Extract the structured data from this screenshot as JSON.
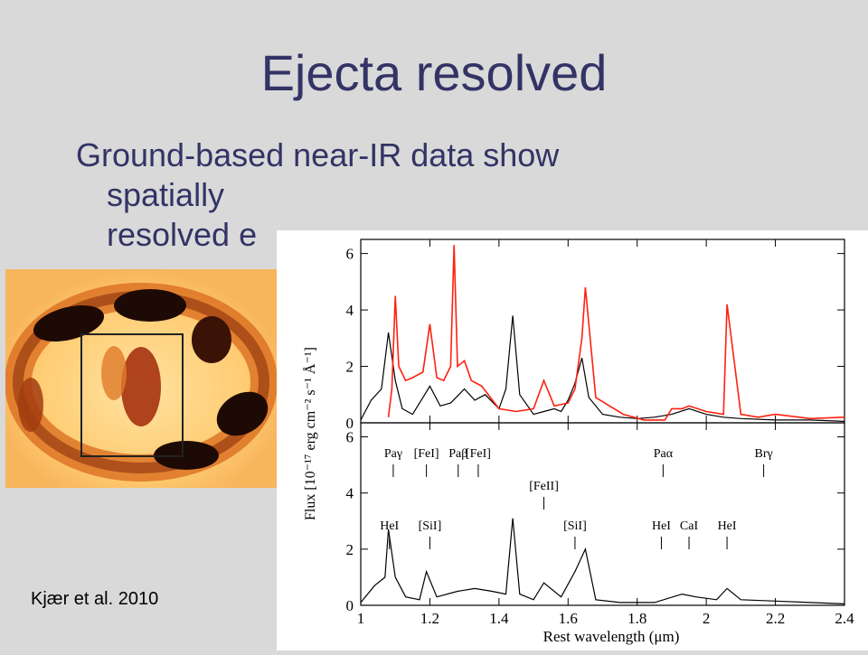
{
  "slide": {
    "title": "Ejecta resolved",
    "bullet_line1": "Ground-based near-IR data show",
    "bullet_line2": "spatially",
    "bullet_line3": "resolved e",
    "citation": "Kjær et al. 2010"
  },
  "colors": {
    "title": "#333366",
    "background": "#d9d9d9",
    "observed_spectrum": "#ff2010",
    "model_spectrum": "#000000",
    "ring_dark": "#1a0804",
    "ring_light": "#ffd890"
  },
  "chart_data": {
    "type": "line",
    "xlabel": "Rest wavelength (μm)",
    "ylabel": "Flux [10⁻¹⁷ erg cm⁻² s⁻¹ Å⁻¹]",
    "xlim": [
      1.0,
      2.4
    ],
    "x_ticks": [
      "1",
      "1.2",
      "1.4",
      "1.6",
      "1.8",
      "2",
      "2.2",
      "2.4"
    ],
    "panels": [
      {
        "name": "top",
        "ylim": [
          0,
          6.5
        ],
        "y_ticks": [
          "0",
          "2",
          "4",
          "6"
        ],
        "series": [
          {
            "x": [
              1.0,
              1.03,
              1.06,
              1.08,
              1.1,
              1.12,
              1.15,
              1.18,
              1.2,
              1.23,
              1.26,
              1.3,
              1.33,
              1.36,
              1.4,
              1.42,
              1.44,
              1.46,
              1.5,
              1.53,
              1.56,
              1.58,
              1.6,
              1.62,
              1.64,
              1.66,
              1.7,
              1.75,
              1.8,
              1.85,
              1.9,
              1.95,
              2.0,
              2.05,
              2.1,
              2.2,
              2.3,
              2.4
            ],
            "y": [
              0.1,
              0.8,
              1.2,
              3.2,
              1.5,
              0.5,
              0.3,
              0.9,
              1.3,
              0.6,
              0.7,
              1.2,
              0.8,
              1.0,
              0.5,
              1.2,
              3.8,
              1.0,
              0.3,
              0.4,
              0.5,
              0.4,
              0.8,
              1.4,
              2.3,
              0.9,
              0.3,
              0.2,
              0.15,
              0.2,
              0.3,
              0.5,
              0.3,
              0.2,
              0.15,
              0.1,
              0.1,
              0.05
            ]
          },
          {
            "x": [
              1.08,
              1.09,
              1.1,
              1.11,
              1.13,
              1.15,
              1.18,
              1.2,
              1.22,
              1.24,
              1.26,
              1.27,
              1.28,
              1.3,
              1.32,
              1.35,
              1.4,
              1.45,
              1.5,
              1.53,
              1.56,
              1.6,
              1.62,
              1.64,
              1.65,
              1.68,
              1.72,
              1.76,
              1.82,
              1.88,
              1.9,
              1.93,
              1.95,
              2.0,
              2.05,
              2.06,
              2.1,
              2.15,
              2.2,
              2.3,
              2.4
            ],
            "y": [
              0.2,
              1.2,
              4.5,
              2.0,
              1.5,
              1.6,
              1.8,
              3.5,
              1.6,
              1.5,
              2.0,
              6.3,
              2.0,
              2.2,
              1.5,
              1.3,
              0.5,
              0.4,
              0.5,
              1.5,
              0.6,
              0.7,
              1.2,
              3.0,
              4.8,
              0.9,
              0.6,
              0.3,
              0.1,
              0.1,
              0.5,
              0.5,
              0.6,
              0.4,
              0.3,
              4.2,
              0.3,
              0.2,
              0.3,
              0.15,
              0.2
            ]
          }
        ]
      },
      {
        "name": "bottom",
        "ylim": [
          0,
          6.5
        ],
        "y_ticks": [
          "0",
          "2",
          "4",
          "6"
        ],
        "series": [
          {
            "x": [
              1.0,
              1.04,
              1.07,
              1.08,
              1.1,
              1.13,
              1.17,
              1.19,
              1.22,
              1.28,
              1.33,
              1.38,
              1.42,
              1.44,
              1.46,
              1.5,
              1.53,
              1.58,
              1.62,
              1.65,
              1.68,
              1.75,
              1.85,
              1.93,
              1.97,
              2.03,
              2.06,
              2.1,
              2.2,
              2.3,
              2.4
            ],
            "y": [
              0.1,
              0.7,
              1.0,
              2.7,
              1.0,
              0.3,
              0.2,
              1.2,
              0.3,
              0.5,
              0.6,
              0.5,
              0.4,
              3.1,
              0.4,
              0.2,
              0.8,
              0.3,
              1.2,
              2.0,
              0.2,
              0.1,
              0.1,
              0.4,
              0.3,
              0.2,
              0.6,
              0.2,
              0.15,
              0.1,
              0.05
            ]
          }
        ],
        "annotations": [
          {
            "label": "Paγ",
            "x": 1.094
          },
          {
            "label": "[FeI]",
            "x": 1.19
          },
          {
            "label": "Paβ",
            "x": 1.282
          },
          {
            "label": "[FeI]",
            "x": 1.34
          },
          {
            "label": "Paα",
            "x": 1.875
          },
          {
            "label": "Brγ",
            "x": 2.166
          },
          {
            "label": "[FeII]",
            "x": 1.53
          },
          {
            "label": "HeI",
            "x": 1.083
          },
          {
            "label": "[SiI]",
            "x": 1.2
          },
          {
            "label": "[SiI]",
            "x": 1.62
          },
          {
            "label": "HeI",
            "x": 1.87
          },
          {
            "label": "CaI",
            "x": 1.95
          },
          {
            "label": "HeI",
            "x": 2.06
          }
        ]
      }
    ]
  }
}
